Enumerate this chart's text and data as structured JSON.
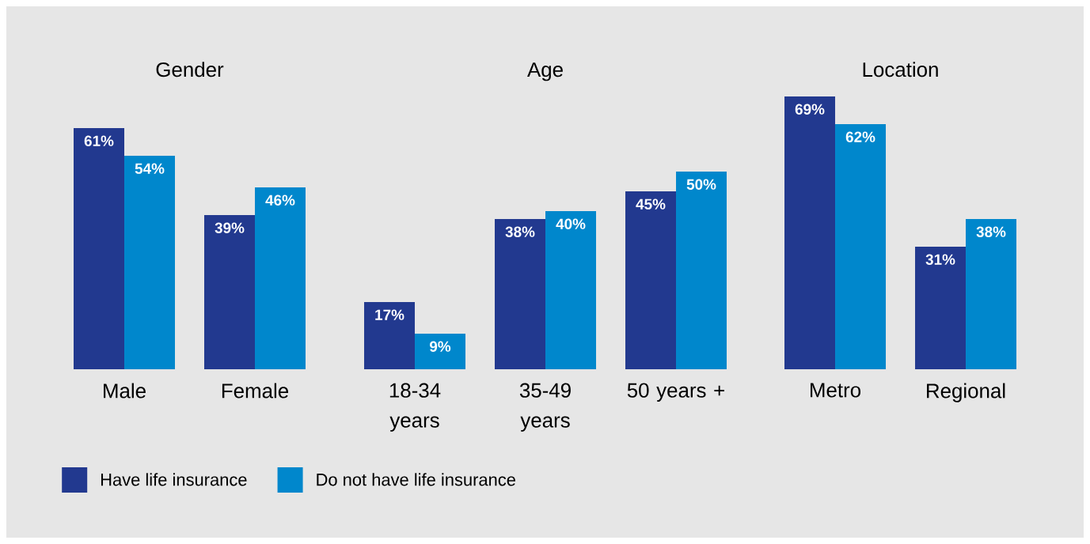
{
  "chart_data": [
    {
      "type": "bar",
      "title": "Gender",
      "categories": [
        "Male",
        "Female"
      ],
      "legend": "bottom",
      "series": [
        {
          "name": "Have life insurance",
          "color": "#22398f",
          "values": [
            61,
            39
          ],
          "value_labels": [
            "61%",
            "39%"
          ]
        },
        {
          "name": "Do not have life insurance",
          "color": "#0087cc",
          "values": [
            54,
            46
          ],
          "value_labels": [
            "54%",
            "46%"
          ]
        }
      ]
    },
    {
      "type": "bar",
      "title": "Age",
      "categories": [
        "18-34 years",
        "35-49 years",
        "50 years +"
      ],
      "series": [
        {
          "color": "#22398f",
          "values": [
            17,
            38,
            45
          ],
          "value_labels": [
            "17%",
            "38%",
            "45%"
          ]
        },
        {
          "color": "#0087cc",
          "values": [
            9,
            40,
            50
          ],
          "value_labels": [
            "9%",
            "40%",
            "50%"
          ]
        }
      ]
    },
    {
      "type": "bar",
      "title": "Location",
      "categories": [
        "Metro",
        "Regional"
      ],
      "series": [
        {
          "color": "#22398f",
          "values": [
            69,
            31
          ],
          "value_labels": [
            "69%",
            "31%"
          ]
        },
        {
          "color": "#0087cc",
          "values": [
            62,
            38
          ],
          "value_labels": [
            "62%",
            "38%"
          ]
        }
      ]
    }
  ]
}
